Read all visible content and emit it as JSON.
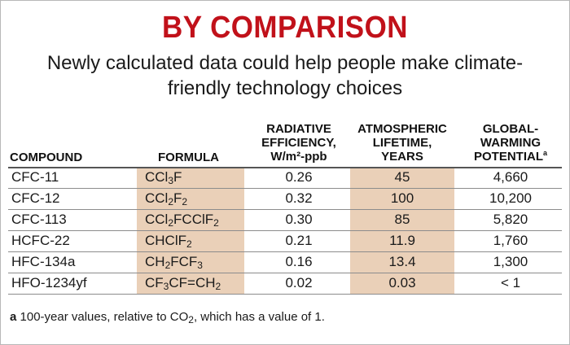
{
  "title": "BY COMPARISON",
  "subtitle": "Newly calculated data could help people make climate-friendly technology choices",
  "headers": {
    "compound": "COMPOUND",
    "formula": "FORMULA",
    "efficiency": [
      "RADIATIVE",
      "EFFICIENCY,",
      "W/m²-ppb"
    ],
    "lifetime": [
      "ATMOSPHERIC",
      "LIFETIME,",
      "YEARS"
    ],
    "gwp": [
      "GLOBAL-",
      "WARMING",
      "POTENTIAL"
    ],
    "gwp_note_marker": "a"
  },
  "rows": [
    {
      "compound": "CFC-11",
      "formula": [
        [
          "CCl",
          ""
        ],
        [
          "3",
          "sub"
        ],
        [
          "F",
          ""
        ]
      ],
      "efficiency": "0.26",
      "lifetime": "45",
      "gwp": "4,660"
    },
    {
      "compound": "CFC-12",
      "formula": [
        [
          "CCl",
          ""
        ],
        [
          "2",
          "sub"
        ],
        [
          "F",
          ""
        ],
        [
          "2",
          "sub"
        ]
      ],
      "efficiency": "0.32",
      "lifetime": "100",
      "gwp": "10,200"
    },
    {
      "compound": "CFC-113",
      "formula": [
        [
          "CCl",
          ""
        ],
        [
          "2",
          "sub"
        ],
        [
          "FCClF",
          ""
        ],
        [
          "2",
          "sub"
        ]
      ],
      "efficiency": "0.30",
      "lifetime": "85",
      "gwp": "5,820"
    },
    {
      "compound": "HCFC-22",
      "formula": [
        [
          "CHClF",
          ""
        ],
        [
          "2",
          "sub"
        ]
      ],
      "efficiency": "0.21",
      "lifetime": "11.9",
      "gwp": "1,760"
    },
    {
      "compound": "HFC-134a",
      "formula": [
        [
          "CH",
          ""
        ],
        [
          "2",
          "sub"
        ],
        [
          "FCF",
          ""
        ],
        [
          "3",
          "sub"
        ]
      ],
      "efficiency": "0.16",
      "lifetime": "13.4",
      "gwp": "1,300"
    },
    {
      "compound": "HFO-1234yf",
      "formula": [
        [
          "CF",
          ""
        ],
        [
          "3",
          "sub"
        ],
        [
          "CF=CH",
          ""
        ],
        [
          "2",
          "sub"
        ]
      ],
      "efficiency": "0.02",
      "lifetime": "0.03",
      "gwp": "< 1"
    }
  ],
  "footnote": {
    "marker": "a",
    "text_before": " 100-year values, relative to CO",
    "text_sub": "2",
    "text_after": ", which has a value of 1."
  },
  "colors": {
    "title": "#c1111a",
    "shade": "#ead0b8"
  }
}
